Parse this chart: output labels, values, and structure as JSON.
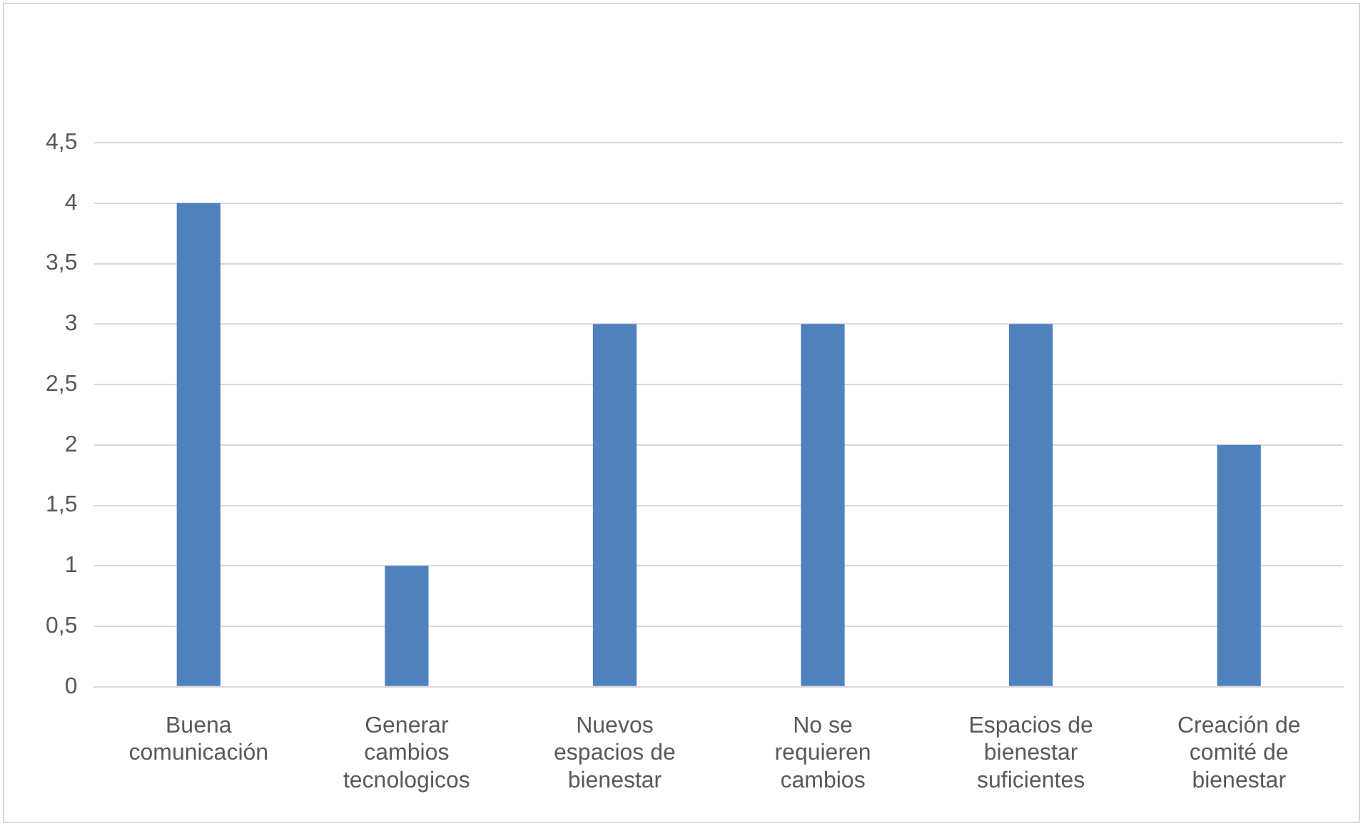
{
  "chart_data": {
    "type": "bar",
    "categories": [
      "Buena comunicación",
      "Generar cambios tecnologicos",
      "Nuevos espacios de bienestar",
      "No se requieren cambios",
      "Espacios de bienestar suficientes",
      "Creación de comité de bienestar"
    ],
    "values": [
      4,
      1,
      3,
      3,
      3,
      2
    ],
    "color": "#4f81bd",
    "ylim": [
      0,
      4.5
    ],
    "yticks": [
      0,
      {
        "value": 0.5,
        "label": "0,5"
      },
      1,
      {
        "value": 1.5,
        "label": "1,5"
      },
      2,
      {
        "value": 2.5,
        "label": "2,5"
      },
      3,
      {
        "value": 3.5,
        "label": "3,5"
      },
      4,
      {
        "value": 4.5,
        "label": "4,5"
      }
    ],
    "grid": "y",
    "legend": false
  }
}
